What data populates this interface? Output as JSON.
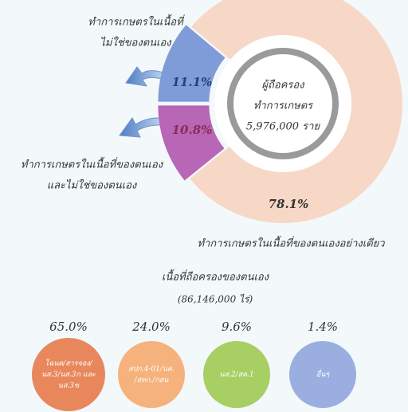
{
  "chart_data": [
    {
      "type": "pie",
      "labels": [
        [
          "ทำการเกษตรในเนื้อที่ของตนเอง",
          "และไม่ใช่ของตนเอง"
        ],
        [
          "ทำการเกษตรในเนื้อที่",
          "ไม่ใช่ของตนเอง"
        ],
        [
          "ทำการเกษตรในเนื้อที่ของตนเองอย่างเดียว"
        ]
      ],
      "values": [
        10.8,
        11.1,
        78.1
      ],
      "value_labels": [
        "10.8%",
        "11.1%",
        "78.1%"
      ],
      "colors": [
        "#b866b6",
        "#7f9bd8",
        "#f7d8c6"
      ],
      "center_text": [
        "ผู้ถือครอง",
        "ทำการเกษตร",
        "5,976,000 ราย"
      ]
    },
    {
      "type": "circles",
      "title": "เนื้อที่ถือครองของตนเอง",
      "subtitle": "(86,146,000 ไร่)",
      "categories": [
        [
          "โฉนด/สารจอง/",
          "นส.3/นส.3ก และ",
          "นส.3ข"
        ],
        [
          "สปก.4-01/นค.",
          "/สทก./กสน"
        ],
        [
          "นส.2/สค.1"
        ],
        [
          "อื่นๆ"
        ]
      ],
      "values": [
        65.0,
        24.0,
        9.6,
        1.4
      ],
      "value_labels": [
        "65.0%",
        "24.0%",
        "9.6%",
        "1.4%"
      ],
      "colors": [
        "#e9875c",
        "#f5b27c",
        "#a7cf64",
        "#9aafe0"
      ]
    }
  ]
}
